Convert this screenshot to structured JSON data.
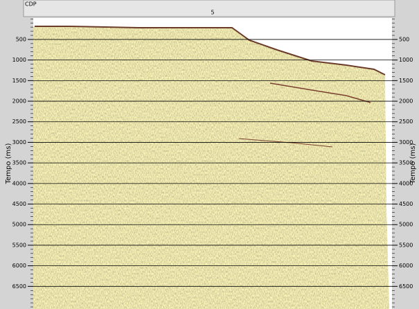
{
  "header": {
    "label": "CDP",
    "marker": "5"
  },
  "axis": {
    "title": "Tempo (ms)",
    "ylim": [
      0,
      7050
    ],
    "ticks": [
      500,
      1000,
      1500,
      2000,
      2500,
      3000,
      3500,
      4000,
      4500,
      5000,
      5500,
      6000,
      6500
    ],
    "minor_step": 100
  }
}
